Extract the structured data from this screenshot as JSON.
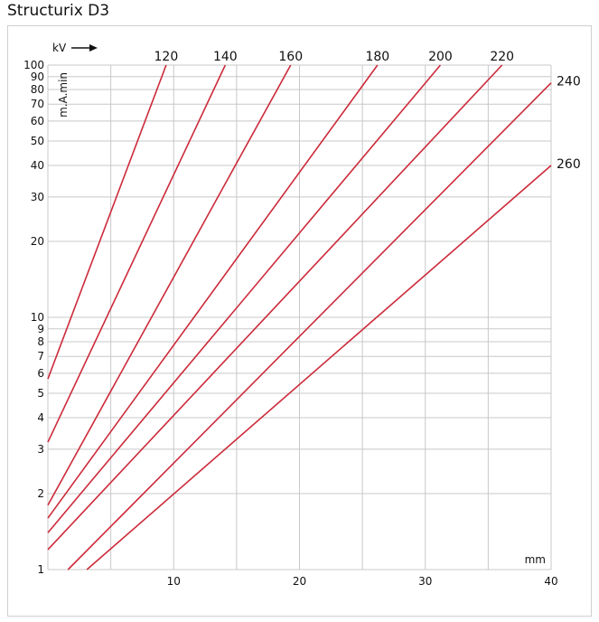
{
  "title": "Structurix D3",
  "chart_data": {
    "type": "line",
    "title": "Structurix D3",
    "xlabel": "mm",
    "ylabel": "m.A.min",
    "series_axis_label": "kV",
    "xlim": [
      0,
      40
    ],
    "ylim": [
      1,
      100
    ],
    "yscale": "log",
    "grid": true,
    "x_ticks": [
      10,
      20,
      30,
      40
    ],
    "y_ticks": [
      1,
      2,
      3,
      4,
      5,
      6,
      7,
      8,
      9,
      10,
      20,
      30,
      40,
      50,
      60,
      70,
      80,
      90,
      100
    ],
    "series": [
      {
        "name": "120",
        "points": [
          [
            0,
            5.7
          ],
          [
            9.4,
            100
          ]
        ]
      },
      {
        "name": "140",
        "points": [
          [
            0,
            3.2
          ],
          [
            14.1,
            100
          ]
        ]
      },
      {
        "name": "160",
        "points": [
          [
            0,
            1.8
          ],
          [
            19.3,
            100
          ]
        ]
      },
      {
        "name": "180",
        "points": [
          [
            0,
            1.6
          ],
          [
            26.2,
            100
          ]
        ]
      },
      {
        "name": "200",
        "points": [
          [
            0,
            1.4
          ],
          [
            31.2,
            100
          ]
        ]
      },
      {
        "name": "220",
        "points": [
          [
            0,
            1.2
          ],
          [
            36.1,
            100
          ]
        ]
      },
      {
        "name": "240",
        "points": [
          [
            1.6,
            1
          ],
          [
            40,
            85
          ]
        ]
      },
      {
        "name": "260",
        "points": [
          [
            3.1,
            1
          ],
          [
            40,
            40
          ]
        ]
      }
    ],
    "line_color": "#cc2a3a"
  }
}
